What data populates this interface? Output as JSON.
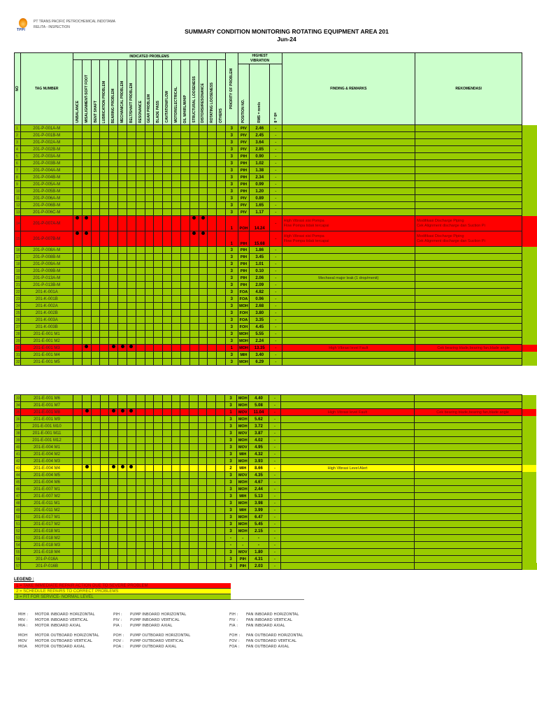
{
  "company": {
    "logo_label": "TPPI",
    "line1": "PT TRANS PACIFIC PETROCHEMICAL INDOTAMA",
    "line2": "RELITA - INSPECTION"
  },
  "title": {
    "main": "SUMMARY CONDITION MONITORING ROTATING EQUIPMENT AREA 201",
    "period": "Jun-24"
  },
  "header": {
    "no": "NO",
    "tag": "TAG NUMBER",
    "indicated_problems": "INDICATED PROBLEMS",
    "problem_columns": [
      "UNBALANCE",
      "MISALIGNMENT-SOFT FOOT",
      "BENT SHAFT",
      "LUBRICATION PROBLEM",
      "BEARING PROBLEM",
      "MECHANICAL PROBLEM",
      "BELT/SHAFT PROBLEM",
      "RESONANCE",
      "GEAR PROBLEM",
      "BLADE PASS",
      "CAVITATION/FLOW",
      "MOTOR/ELECTRICAL",
      "OIL WHIRL/WHIP",
      "STRUCTURAL LOOSENESS",
      "DISTORSI/RESONANCE",
      "ROTATING LOOSENESS",
      "OTHERS"
    ],
    "priority": "PRIORITY OF PROBLEM",
    "highest_vibration": "HIGHEST VIBRATION",
    "position": "POSITION NO.",
    "rms": "RMS = mm/s",
    "g": "g = gs",
    "finding": "FINDING & REMARKS",
    "rekomendasi": "REKOMENDASI"
  },
  "rows": [
    {
      "no": "1",
      "tag": "201-P-001A-M",
      "dots": [],
      "priority": "3",
      "position": "PIV",
      "rms": "2.46",
      "g": "-",
      "finding": "",
      "rekomendasi": ""
    },
    {
      "no": "2",
      "tag": "201-P-001B-M",
      "dots": [],
      "priority": "3",
      "position": "PIV",
      "rms": "2.45",
      "g": "-",
      "finding": "",
      "rekomendasi": ""
    },
    {
      "no": "3",
      "tag": "201-P-002A-M",
      "dots": [],
      "priority": "3",
      "position": "PIV",
      "rms": "3.64",
      "g": "-",
      "finding": "",
      "rekomendasi": ""
    },
    {
      "no": "4",
      "tag": "201-P-002B-M",
      "dots": [],
      "priority": "3",
      "position": "PIV",
      "rms": "2.85",
      "g": "-",
      "finding": "",
      "rekomendasi": ""
    },
    {
      "no": "5",
      "tag": "201-P-003A-M",
      "dots": [],
      "priority": "3",
      "position": "PIH",
      "rms": "0.90",
      "g": "-",
      "finding": "",
      "rekomendasi": ""
    },
    {
      "no": "6",
      "tag": "201-P-003B-M",
      "dots": [],
      "priority": "3",
      "position": "PIH",
      "rms": "1.02",
      "g": "-",
      "finding": "",
      "rekomendasi": ""
    },
    {
      "no": "7",
      "tag": "201-P-004A-M",
      "dots": [],
      "priority": "3",
      "position": "PIH",
      "rms": "1.38",
      "g": "-",
      "finding": "",
      "rekomendasi": ""
    },
    {
      "no": "8",
      "tag": "201-P-004B-M",
      "dots": [],
      "priority": "3",
      "position": "PIH",
      "rms": "2.34",
      "g": "-",
      "finding": "",
      "rekomendasi": ""
    },
    {
      "no": "9",
      "tag": "201-P-005A-M",
      "dots": [],
      "priority": "3",
      "position": "PIH",
      "rms": "0.99",
      "g": "-",
      "finding": "",
      "rekomendasi": ""
    },
    {
      "no": "10",
      "tag": "201-P-005B-M",
      "dots": [],
      "priority": "3",
      "position": "PIH",
      "rms": "1.20",
      "g": "-",
      "finding": "",
      "rekomendasi": ""
    },
    {
      "no": "11",
      "tag": "201-P-006A-M",
      "dots": [],
      "priority": "3",
      "position": "PIV",
      "rms": "0.89",
      "g": "-",
      "finding": "",
      "rekomendasi": ""
    },
    {
      "no": "12",
      "tag": "201-P-006B-M",
      "dots": [],
      "priority": "3",
      "position": "PIV",
      "rms": "1.65",
      "g": "-",
      "finding": "",
      "rekomendasi": ""
    },
    {
      "no": "13",
      "tag": "201-P-006C-M",
      "dots": [],
      "priority": "3",
      "position": "PIV",
      "rms": "1.17",
      "g": "-",
      "finding": "",
      "rekomendasi": ""
    },
    {
      "no": "14",
      "tag": "201-P-007A-M",
      "dots": [
        0,
        1,
        13,
        14
      ],
      "priority": "1",
      "position": "POH",
      "rms": "14.24",
      "g": "-",
      "finding": "High Vibrasi sisi Pompa\nFlow Pompa tidak tercapai",
      "rekomendasi": "Modifikasi Discharge Piping\nCek Alignment discharge dan Suction Pi"
    },
    {
      "no": "15",
      "tag": "201-P-007B-M",
      "dots": [
        0,
        1,
        13,
        14
      ],
      "priority": "1",
      "position": "PIH",
      "rms": "15.68",
      "g": "-",
      "finding": "High Vibrasi sisi Pompa\nFlow Pompa tidak tercapai",
      "rekomendasi": "Modifikasi Discharge Piping\nCek Alignment discharge dan Suction Pi"
    },
    {
      "no": "16",
      "tag": "201-P-008A-M",
      "dots": [],
      "priority": "3",
      "position": "PIH",
      "rms": "1.86",
      "g": "-",
      "finding": "",
      "rekomendasi": ""
    },
    {
      "no": "17",
      "tag": "201-P-008B-M",
      "dots": [],
      "priority": "3",
      "position": "PIH",
      "rms": "3.45",
      "g": "-",
      "finding": "",
      "rekomendasi": ""
    },
    {
      "no": "18",
      "tag": "201-P-009A-M",
      "dots": [],
      "priority": "3",
      "position": "PIH",
      "rms": "1.01",
      "g": "-",
      "finding": "",
      "rekomendasi": ""
    },
    {
      "no": "19",
      "tag": "201-P-009B-M",
      "dots": [],
      "priority": "3",
      "position": "PIH",
      "rms": "0.10",
      "g": "-",
      "finding": "",
      "rekomendasi": ""
    },
    {
      "no": "20",
      "tag": "201-P-013A-M",
      "dots": [],
      "priority": "3",
      "position": "PIH",
      "rms": "2.06",
      "g": "-",
      "finding": "Mechseal major leak (1 drop/menit)",
      "rekomendasi": ""
    },
    {
      "no": "21",
      "tag": "201-P-013B-M",
      "dots": [],
      "priority": "3",
      "position": "PIH",
      "rms": "2.09",
      "g": "-",
      "finding": "",
      "rekomendasi": ""
    },
    {
      "no": "22",
      "tag": "201-K-001A",
      "dots": [],
      "priority": "3",
      "position": "FOA",
      "rms": "4.82",
      "g": "-",
      "finding": "",
      "rekomendasi": ""
    },
    {
      "no": "23",
      "tag": "201-K-001B",
      "dots": [],
      "priority": "3",
      "position": "FOA",
      "rms": "0.96",
      "g": "-",
      "finding": "",
      "rekomendasi": ""
    },
    {
      "no": "24",
      "tag": "201-K-002A",
      "dots": [],
      "priority": "3",
      "position": "MOH",
      "rms": "2.68",
      "g": "-",
      "finding": "",
      "rekomendasi": ""
    },
    {
      "no": "25",
      "tag": "201-K-002B",
      "dots": [],
      "priority": "3",
      "position": "FOH",
      "rms": "3.80",
      "g": "-",
      "finding": "",
      "rekomendasi": ""
    },
    {
      "no": "26",
      "tag": "201-K-003A",
      "dots": [],
      "priority": "3",
      "position": "FOA",
      "rms": "3.35",
      "g": "-",
      "finding": "",
      "rekomendasi": ""
    },
    {
      "no": "27",
      "tag": "201-K-003B",
      "dots": [],
      "priority": "3",
      "position": "FOH",
      "rms": "4.45",
      "g": "-",
      "finding": "",
      "rekomendasi": ""
    },
    {
      "no": "28",
      "tag": "201-E-001 M1",
      "dots": [],
      "priority": "3",
      "position": "MOH",
      "rms": "5.55",
      "g": "-",
      "finding": "",
      "rekomendasi": ""
    },
    {
      "no": "29",
      "tag": "201-E-001 M2",
      "dots": [],
      "priority": "3",
      "position": "MOH",
      "rms": "2.24",
      "g": "-",
      "finding": "",
      "rekomendasi": ""
    },
    {
      "no": "30",
      "tag": "201-E-001 M3",
      "dots": [
        1,
        4,
        5,
        6
      ],
      "priority": "1",
      "position": "MOH",
      "rms": "13.35",
      "g": "-",
      "finding": "High Vibrasi level Fault",
      "rekomendasi": "Cek bearing blade,bearing fan,blade angle"
    },
    {
      "no": "31",
      "tag": "201-E-001 M4",
      "dots": [],
      "priority": "3",
      "position": "MIH",
      "rms": "3.40",
      "g": "-",
      "finding": "",
      "rekomendasi": ""
    },
    {
      "no": "32",
      "tag": "201-E-001 M5",
      "dots": [],
      "priority": "3",
      "position": "MOH",
      "rms": "6.29",
      "g": "-",
      "finding": "",
      "rekomendasi": ""
    },
    {
      "no": "33",
      "tag": "201-E-001 M6",
      "dots": [],
      "priority": "3",
      "position": "MOH",
      "rms": "4.40",
      "g": "-",
      "finding": "",
      "rekomendasi": ""
    },
    {
      "no": "34",
      "tag": "201-E-001 M7",
      "dots": [],
      "priority": "3",
      "position": "MOH",
      "rms": "5.08",
      "g": "-",
      "finding": "",
      "rekomendasi": ""
    },
    {
      "no": "35",
      "tag": "201-E-001 M8",
      "dots": [
        1,
        4,
        5,
        6
      ],
      "priority": "1",
      "position": "MOV",
      "rms": "11.04",
      "g": "-",
      "finding": "High Vibrasi level Fault",
      "rekomendasi": "Cek bearing blade,bearing fan,blade angle"
    },
    {
      "no": "36",
      "tag": "201-E-001 M9",
      "dots": [],
      "priority": "3",
      "position": "MOH",
      "rms": "5.62",
      "g": "-",
      "finding": "",
      "rekomendasi": ""
    },
    {
      "no": "37",
      "tag": "201-E-001 M10",
      "dots": [],
      "priority": "3",
      "position": "MOH",
      "rms": "3.72",
      "g": "-",
      "finding": "",
      "rekomendasi": ""
    },
    {
      "no": "38",
      "tag": "201-E-001 M11",
      "dots": [],
      "priority": "3",
      "position": "MOV",
      "rms": "3.87",
      "g": "-",
      "finding": "",
      "rekomendasi": ""
    },
    {
      "no": "39",
      "tag": "201-E-001 M12",
      "dots": [],
      "priority": "3",
      "position": "MOH",
      "rms": "4.02",
      "g": "-",
      "finding": "",
      "rekomendasi": ""
    },
    {
      "no": "40",
      "tag": "201-E-004 M1",
      "dots": [],
      "priority": "3",
      "position": "MOV",
      "rms": "4.95",
      "g": "-",
      "finding": "",
      "rekomendasi": ""
    },
    {
      "no": "41",
      "tag": "201-E-004 M2",
      "dots": [],
      "priority": "3",
      "position": "MIH",
      "rms": "4.32",
      "g": "-",
      "finding": "",
      "rekomendasi": ""
    },
    {
      "no": "42",
      "tag": "201-E-004 M3",
      "dots": [],
      "priority": "3",
      "position": "MOH",
      "rms": "3.93",
      "g": "-",
      "finding": "",
      "rekomendasi": ""
    },
    {
      "no": "43",
      "tag": "201-E-004 M4",
      "dots": [
        1,
        4,
        5,
        6
      ],
      "priority": "2",
      "position": "MIH",
      "rms": "8.66",
      "g": "-",
      "finding": "High Vibrasi Level Alert",
      "rekomendasi": ""
    },
    {
      "no": "44",
      "tag": "201-E-004 M5",
      "dots": [],
      "priority": "3",
      "position": "MOV",
      "rms": "4.35",
      "g": "-",
      "finding": "",
      "rekomendasi": ""
    },
    {
      "no": "45",
      "tag": "201-E-004 M6",
      "dots": [],
      "priority": "3",
      "position": "MOH",
      "rms": "4.67",
      "g": "-",
      "finding": "",
      "rekomendasi": ""
    },
    {
      "no": "46",
      "tag": "201-E-007 M1",
      "dots": [],
      "priority": "3",
      "position": "MOH",
      "rms": "2.44",
      "g": "-",
      "finding": "",
      "rekomendasi": ""
    },
    {
      "no": "47",
      "tag": "201-E-007 M2",
      "dots": [],
      "priority": "3",
      "position": "MIH",
      "rms": "5.13",
      "g": "-",
      "finding": "",
      "rekomendasi": ""
    },
    {
      "no": "48",
      "tag": "201-E-011 M1",
      "dots": [],
      "priority": "3",
      "position": "MOH",
      "rms": "3.98",
      "g": "-",
      "finding": "",
      "rekomendasi": ""
    },
    {
      "no": "49",
      "tag": "201-E-011 M2",
      "dots": [],
      "priority": "3",
      "position": "MIH",
      "rms": "3.99",
      "g": "-",
      "finding": "",
      "rekomendasi": ""
    },
    {
      "no": "50",
      "tag": "201-E-017 M1",
      "dots": [],
      "priority": "3",
      "position": "MOH",
      "rms": "6.47",
      "g": "-",
      "finding": "",
      "rekomendasi": ""
    },
    {
      "no": "51",
      "tag": "201-E-017 M2",
      "dots": [],
      "priority": "3",
      "position": "MOH",
      "rms": "5.45",
      "g": "-",
      "finding": "",
      "rekomendasi": ""
    },
    {
      "no": "52",
      "tag": "201-E-018 M1",
      "dots": [],
      "priority": "3",
      "position": "MOH",
      "rms": "2.15",
      "g": "-",
      "finding": "",
      "rekomendasi": ""
    },
    {
      "no": "53",
      "tag": "201-E-018 M2",
      "dots": [],
      "priority": "-",
      "position": "-",
      "rms": "-",
      "g": "-",
      "finding": "",
      "rekomendasi": ""
    },
    {
      "no": "54",
      "tag": "201-E-018 M3",
      "dots": [],
      "priority": "-",
      "position": "-",
      "rms": "-",
      "g": "-",
      "finding": "",
      "rekomendasi": ""
    },
    {
      "no": "55",
      "tag": "201-E-018 M4",
      "dots": [],
      "priority": "3",
      "position": "MOV",
      "rms": "1.80",
      "g": "-",
      "finding": "",
      "rekomendasi": ""
    },
    {
      "no": "56",
      "tag": "201-P-016A",
      "dots": [],
      "priority": "3",
      "position": "PIH",
      "rms": "4.31",
      "g": "-",
      "finding": "",
      "rekomendasi": ""
    },
    {
      "no": "57",
      "tag": "201-P-016B",
      "dots": [],
      "priority": "3",
      "position": "PIH",
      "rms": "2.03",
      "g": "-",
      "finding": "",
      "rekomendasi": ""
    }
  ],
  "colors": {
    "priority_1": "#ff0000",
    "priority_2": "#ffff00",
    "priority_3": "#99cc00",
    "header_bg": "#ccffcc"
  },
  "legend": {
    "title": "LEGEND :",
    "items": [
      {
        "priority": "1",
        "label": "1 = TAKE IMMEDIATE REPAIR ACTION DUE TO SEVERE PROBLEM"
      },
      {
        "priority": "2",
        "label": "2 = SCHEDULE REPAIRS TO CORRECT PROBLEMS"
      },
      {
        "priority": "3",
        "label": "3 = FIT FOR SERVICE- NORMAL LEVEL"
      }
    ]
  },
  "position_codes": [
    [
      {
        "code": "MIH :",
        "desc": "MOTOR INBOARD HORIZONTAL"
      },
      {
        "code": "MIV :",
        "desc": "MOTOR INBOARD VERTICAL"
      },
      {
        "code": "MIA :",
        "desc": "MOTOR INBOARD AXIAL"
      },
      {
        "code": "MOH",
        "desc": "MOTOR OUTBOARD HORIZONTAL"
      },
      {
        "code": "MOV",
        "desc": "MOTOR OUTBOARD VERTICAL"
      },
      {
        "code": "MOA",
        "desc": "MOTOR OUTBOARD AXIAL"
      }
    ],
    [
      {
        "code": "PIH :",
        "desc": "PUMP INBOARD HORIZONTAL"
      },
      {
        "code": "PIV :",
        "desc": "PUMP INBOARD VERTICAL"
      },
      {
        "code": "PIA :",
        "desc": "PUMP INBOARD AXIAL"
      },
      {
        "code": "POH :",
        "desc": "PUMP OUTBOARD HORIZONTAL"
      },
      {
        "code": "POV :",
        "desc": "PUMP OUTBOARD VERTICAL"
      },
      {
        "code": "POA :",
        "desc": "PUMP OUTBOARD AXIAL"
      }
    ],
    [
      {
        "code": "FIH :",
        "desc": "FAN INBOARD HORIZONTAL"
      },
      {
        "code": "FIV :",
        "desc": "FAN INBOARD VERTICAL"
      },
      {
        "code": "FIA :",
        "desc": "FAN INBOARD AXIAL"
      },
      {
        "code": "FOH :",
        "desc": "FAN OUTBOARD HORIZONTAL"
      },
      {
        "code": "FOV :",
        "desc": "FAN OUTBOARD VERTICAL"
      },
      {
        "code": "FOA :",
        "desc": "FAN OUTBOARD AXIAL"
      }
    ]
  ]
}
